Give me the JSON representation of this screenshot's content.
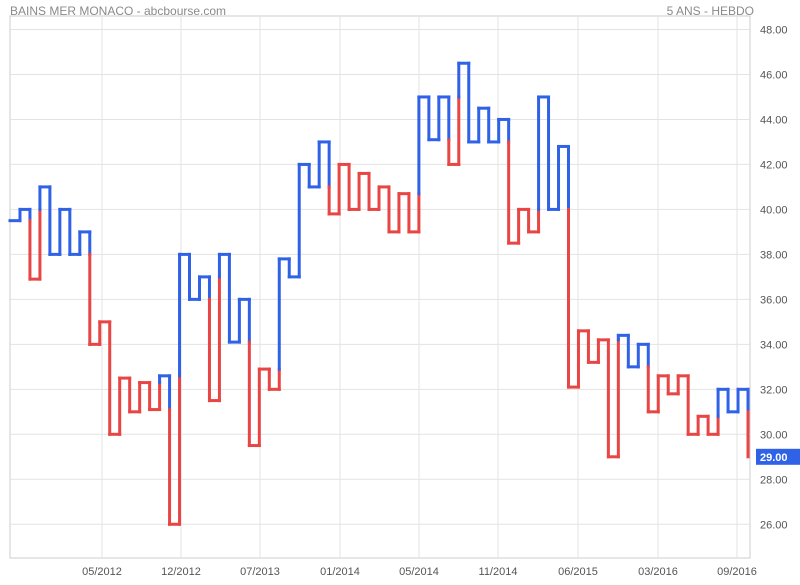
{
  "header": {
    "title": "BAINS MER MONACO - abcbourse.com",
    "period": "5 ANS - HEBDO"
  },
  "last_price_label": "29.00",
  "colors": {
    "up": "#2f62e6",
    "down": "#e84545",
    "grid": "#e3e3e3",
    "axis": "#555555",
    "badge": "#2f62e6"
  },
  "chart_data": {
    "type": "line",
    "style": "kagi",
    "title": "BAINS MER MONACO - abcbourse.com",
    "subtitle": "5 ANS - HEBDO",
    "xlabel": "",
    "ylabel": "",
    "ylim": [
      24.5,
      48.6
    ],
    "grid": true,
    "y_ticks": [
      "48.00",
      "46.00",
      "44.00",
      "42.00",
      "40.00",
      "38.00",
      "36.00",
      "34.00",
      "32.00",
      "30.00",
      "28.00",
      "26.00"
    ],
    "x_ticks": [
      "05/2012",
      "12/2012",
      "07/2013",
      "01/2014",
      "05/2014",
      "11/2014",
      "06/2015",
      "03/2016",
      "09/2016"
    ],
    "last_value": 29.0,
    "values": [
      39.5,
      40.0,
      36.9,
      41.0,
      38.0,
      40.0,
      38.0,
      39.0,
      34.0,
      35.0,
      30.0,
      32.5,
      31.0,
      32.3,
      31.1,
      32.6,
      26.0,
      38.0,
      36.0,
      37.0,
      31.5,
      38.0,
      34.1,
      36.0,
      29.5,
      32.9,
      32.0,
      37.8,
      37.0,
      42.0,
      41.0,
      43.0,
      39.8,
      42.0,
      40.0,
      41.6,
      40.0,
      41.0,
      39.0,
      40.7,
      39.0,
      45.0,
      43.1,
      45.0,
      42.0,
      46.5,
      43.0,
      44.5,
      43.0,
      44.0,
      38.5,
      40.0,
      39.0,
      45.0,
      40.0,
      42.8,
      32.1,
      34.6,
      33.2,
      34.2,
      29.0,
      34.4,
      33.0,
      34.0,
      31.0,
      32.6,
      31.8,
      32.6,
      30.0,
      30.8,
      30.0,
      32.0,
      31.0,
      32.0,
      29.0
    ]
  }
}
